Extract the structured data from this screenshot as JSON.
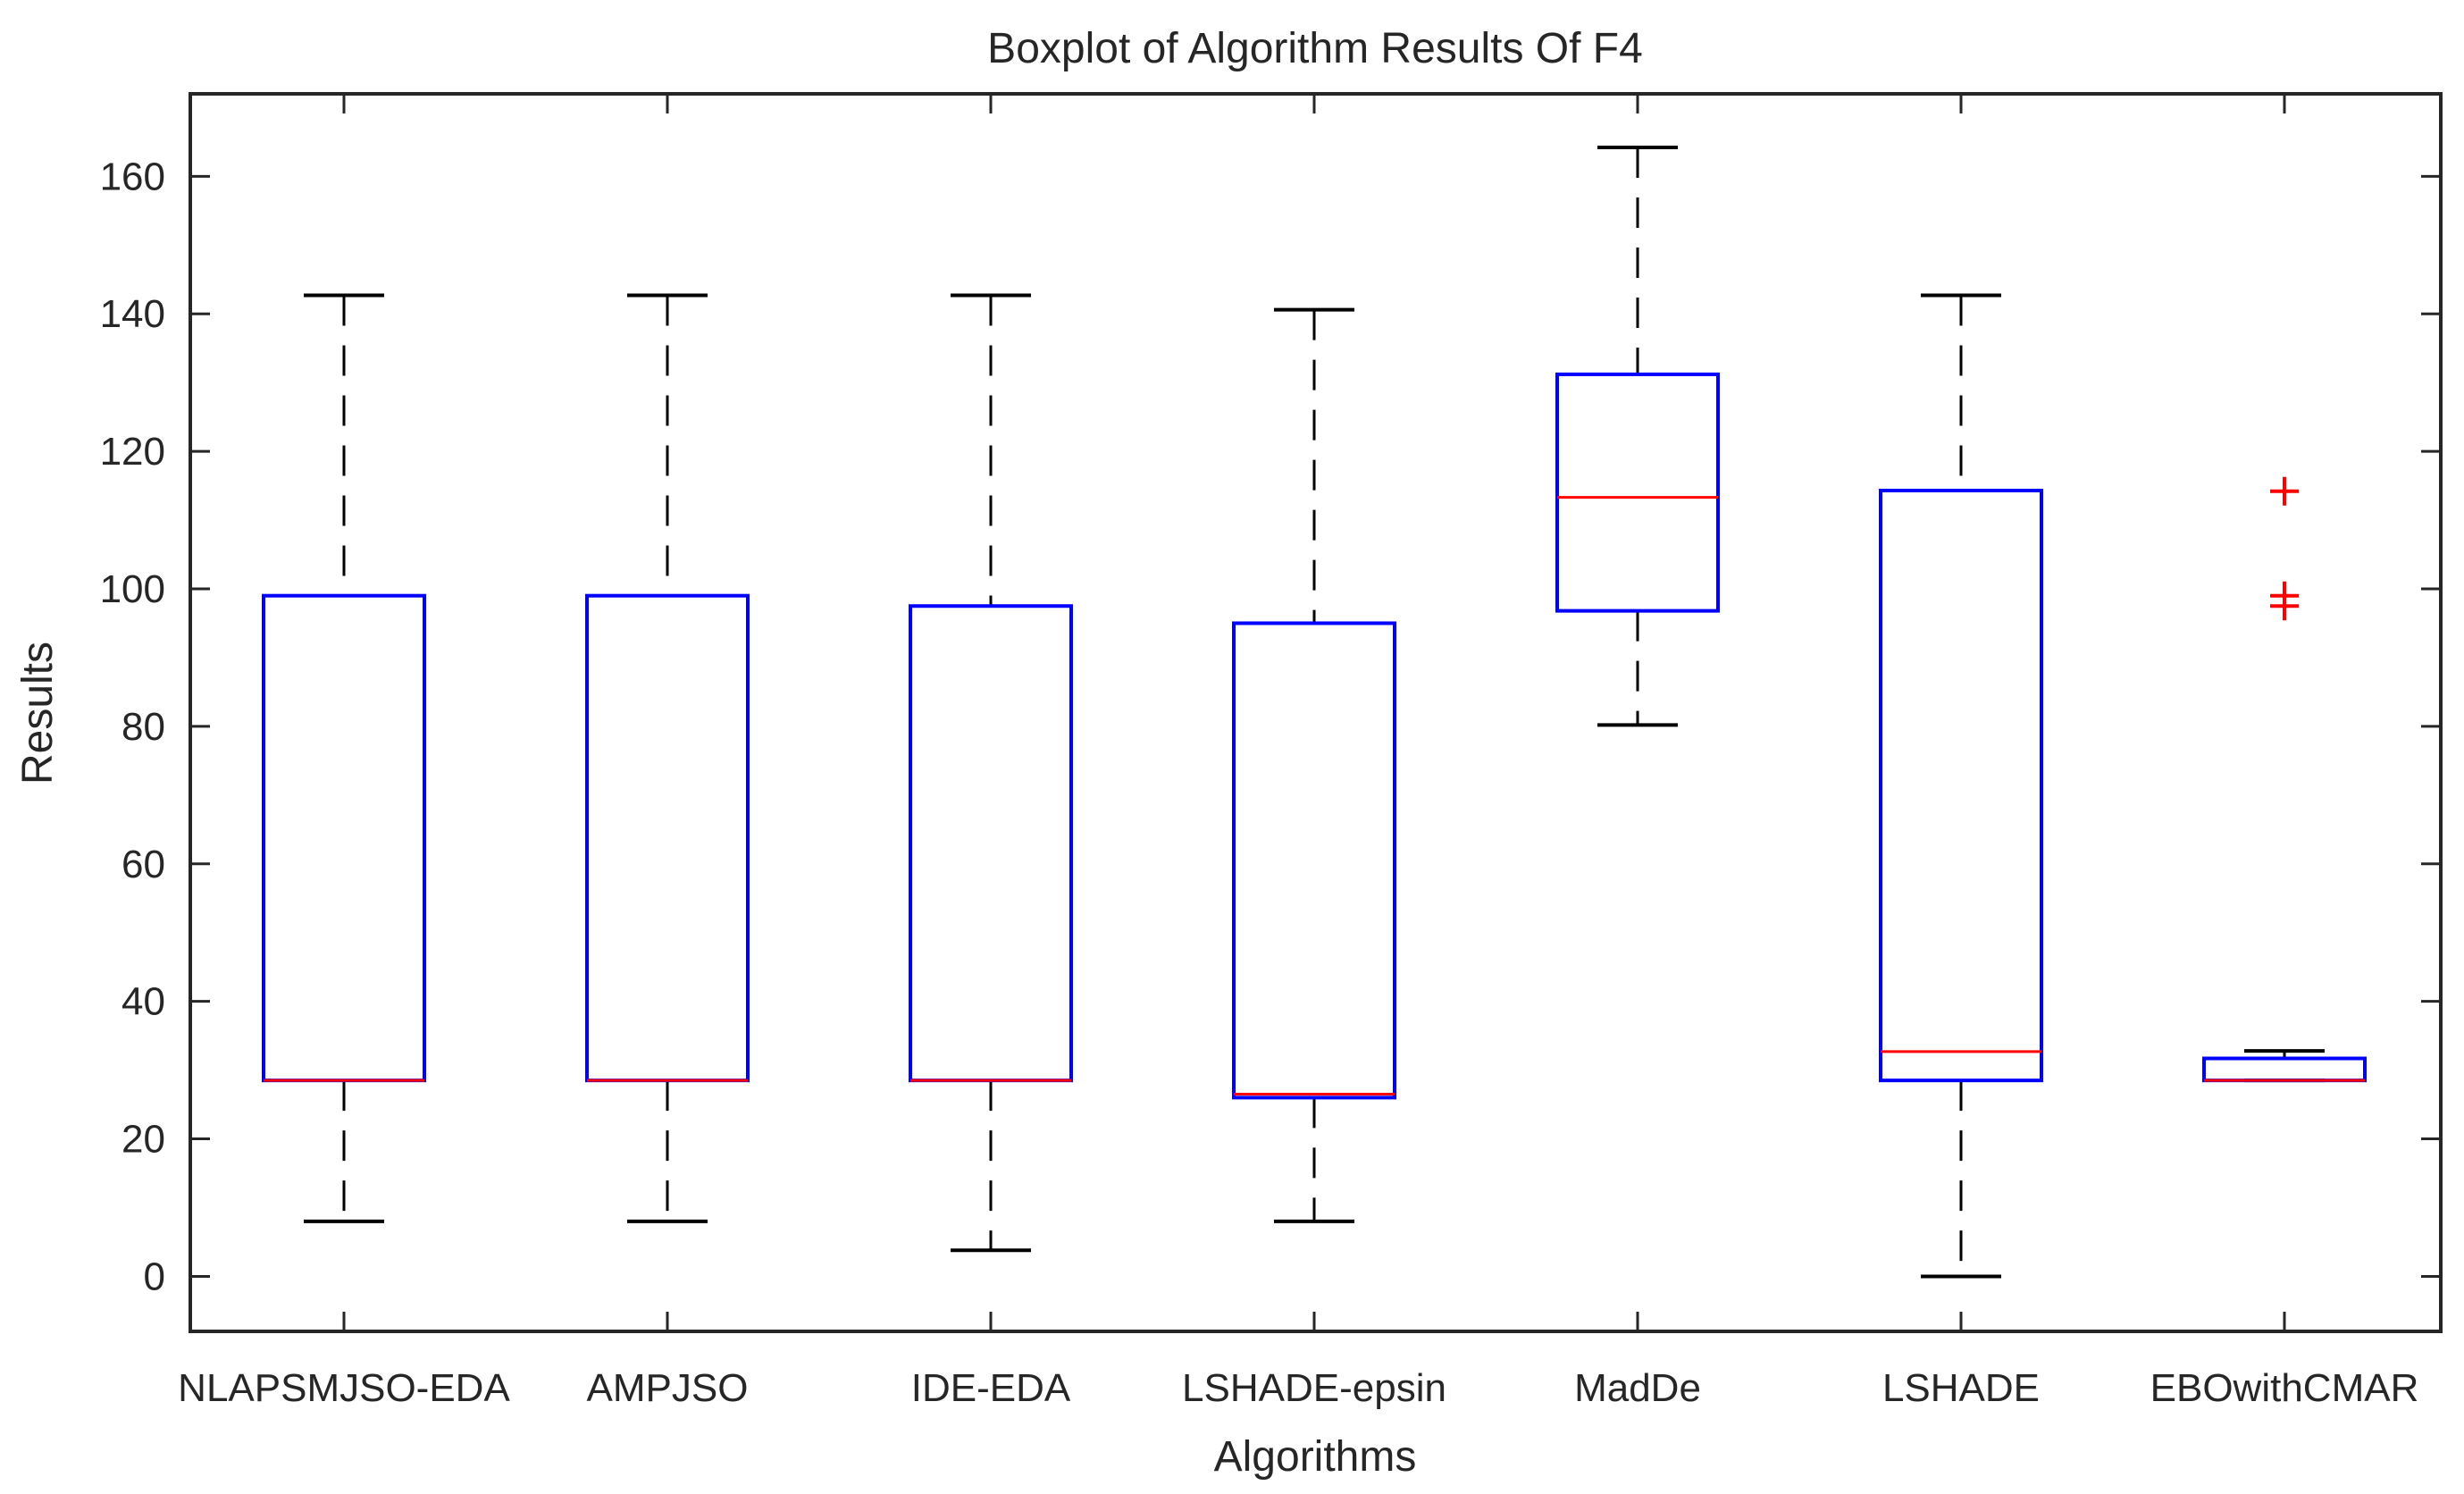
{
  "chart_data": {
    "type": "boxplot",
    "title": "Boxplot of Algorithm Results Of F4",
    "xlabel": "Algorithms",
    "ylabel": "Results",
    "ylim": [
      -8,
      172
    ],
    "yticks": [
      0,
      20,
      40,
      60,
      80,
      100,
      120,
      140,
      160
    ],
    "grid": false,
    "categories": [
      "NLAPSMJSO-EDA",
      "AMPJSO",
      "IDE-EDA",
      "LSHADE-epsin",
      "MadDe",
      "LSHADE",
      "EBOwithCMAR"
    ],
    "boxes": [
      {
        "name": "NLAPSMJSO-EDA",
        "whisker_low": 8,
        "q1": 28.5,
        "median": 28.5,
        "q3": 99,
        "whisker_high": 142.7,
        "outliers": []
      },
      {
        "name": "AMPJSO",
        "whisker_low": 8,
        "q1": 28.5,
        "median": 28.5,
        "q3": 99,
        "whisker_high": 142.7,
        "outliers": []
      },
      {
        "name": "IDE-EDA",
        "whisker_low": 3.8,
        "q1": 28.5,
        "median": 28.5,
        "q3": 97.5,
        "whisker_high": 142.7,
        "outliers": []
      },
      {
        "name": "LSHADE-epsin",
        "whisker_low": 8,
        "q1": 26,
        "median": 26.5,
        "q3": 95,
        "whisker_high": 140.6,
        "outliers": []
      },
      {
        "name": "MadDe",
        "whisker_low": 80.2,
        "q1": 96.8,
        "median": 113.3,
        "q3": 131.2,
        "whisker_high": 164.2,
        "outliers": []
      },
      {
        "name": "LSHADE",
        "whisker_low": 0,
        "q1": 28.5,
        "median": 32.7,
        "q3": 114.3,
        "whisker_high": 142.7,
        "outliers": []
      },
      {
        "name": "EBOwithCMAR",
        "whisker_low": 28.5,
        "q1": 28.5,
        "median": 28.5,
        "q3": 31.7,
        "whisker_high": 32.8,
        "outliers": [
          114.2,
          99,
          97.5
        ]
      }
    ],
    "colors": {
      "box": "#0000ff",
      "median": "#ff0000",
      "whisker": "#000000",
      "outlier": "#ff0000",
      "axes": "#262626"
    }
  }
}
